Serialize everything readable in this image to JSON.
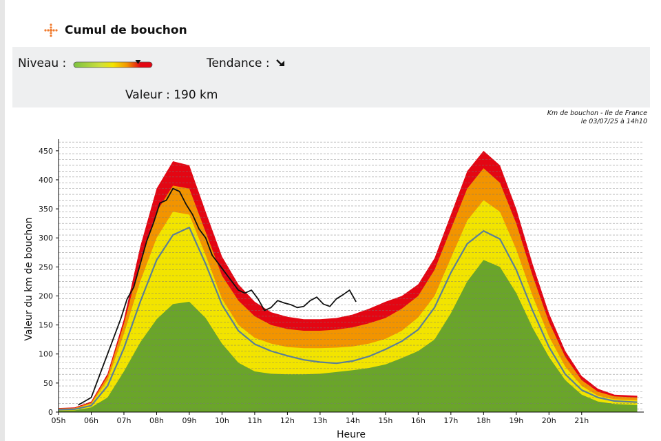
{
  "header": {
    "title": "Cumul de bouchon",
    "icon": "traffic-icon"
  },
  "status": {
    "niveau_label": "Niveau :",
    "tendance_label": "Tendance :",
    "tendance_icon": "arrow-down-right-icon",
    "valeur_label": "Valeur : 190 km",
    "level_colors": [
      "#7dc242",
      "#f2e400",
      "#f29400",
      "#e30613"
    ],
    "level_fraction": 0.82
  },
  "chart_data": {
    "type": "area",
    "title": "Km de bouchon - Ile de France",
    "subtitle": "le 03/07/25 à 14h10",
    "xlabel": "Heure",
    "ylabel": "Valeur du km de bouchon",
    "xlim": [
      5,
      22.9
    ],
    "ylim": [
      0,
      470
    ],
    "x_ticks": [
      5,
      6,
      7,
      8,
      9,
      10,
      11,
      12,
      13,
      14,
      15,
      16,
      17,
      18,
      19,
      20,
      21
    ],
    "x_tick_labels": [
      "05h",
      "06h",
      "07h",
      "08h",
      "09h",
      "10h",
      "11h",
      "12h",
      "13h",
      "14h",
      "15h",
      "16h",
      "17h",
      "18h",
      "19h",
      "20h",
      "21h"
    ],
    "y_ticks": [
      0,
      50,
      100,
      150,
      200,
      250,
      300,
      350,
      400,
      450
    ],
    "grid": "horizontal-dashed",
    "x": [
      5,
      5.5,
      6,
      6.5,
      7,
      7.5,
      8,
      8.5,
      9,
      9.5,
      10,
      10.5,
      11,
      11.5,
      12,
      12.5,
      13,
      13.5,
      14,
      14.5,
      15,
      15.5,
      16,
      16.5,
      17,
      17.5,
      18,
      18.5,
      19,
      19.5,
      20,
      20.5,
      21,
      21.5,
      22,
      22.7
    ],
    "bands": [
      {
        "name": "green",
        "color": "#6aa52a",
        "values": [
          2,
          3,
          8,
          25,
          70,
          120,
          160,
          186,
          190,
          162,
          118,
          85,
          70,
          66,
          65,
          65,
          66,
          69,
          72,
          76,
          82,
          93,
          105,
          125,
          170,
          225,
          262,
          250,
          205,
          145,
          95,
          55,
          30,
          18,
          14,
          12
        ]
      },
      {
        "name": "yellow",
        "color": "#f2e400",
        "values": [
          5,
          6,
          14,
          55,
          135,
          225,
          300,
          345,
          340,
          270,
          195,
          150,
          128,
          118,
          112,
          110,
          110,
          111,
          113,
          118,
          126,
          140,
          163,
          200,
          265,
          330,
          365,
          345,
          280,
          200,
          130,
          78,
          45,
          28,
          22,
          20
        ]
      },
      {
        "name": "orange",
        "color": "#f29400",
        "values": [
          6,
          7,
          16,
          62,
          152,
          260,
          345,
          390,
          385,
          310,
          235,
          192,
          165,
          150,
          143,
          140,
          140,
          142,
          146,
          153,
          162,
          178,
          200,
          245,
          315,
          385,
          420,
          395,
          325,
          235,
          155,
          95,
          55,
          35,
          27,
          25
        ]
      },
      {
        "name": "red",
        "color": "#e30613",
        "values": [
          7,
          8,
          18,
          66,
          160,
          285,
          385,
          432,
          425,
          345,
          268,
          220,
          190,
          172,
          164,
          160,
          160,
          162,
          168,
          178,
          190,
          200,
          220,
          265,
          340,
          415,
          450,
          425,
          350,
          255,
          170,
          105,
          62,
          40,
          30,
          28
        ]
      }
    ],
    "series": [
      {
        "color": "#5b7f96",
        "x": [
          5,
          5.5,
          6,
          6.5,
          7,
          7.5,
          8,
          8.5,
          9,
          9.5,
          10,
          10.5,
          11,
          11.5,
          12,
          12.5,
          13,
          13.5,
          14,
          14.5,
          15,
          15.5,
          16,
          16.5,
          17,
          17.5,
          18,
          18.5,
          19,
          19.5,
          20,
          20.5,
          21,
          21.5,
          22,
          22.7
        ],
        "values": [
          4,
          5,
          11,
          45,
          110,
          190,
          262,
          305,
          318,
          255,
          185,
          140,
          117,
          105,
          97,
          90,
          86,
          84,
          88,
          96,
          108,
          122,
          142,
          180,
          240,
          290,
          312,
          298,
          245,
          175,
          112,
          65,
          38,
          25,
          19,
          17
        ]
      },
      {
        "color": "#111111",
        "x": [
          5.6,
          6,
          6.3,
          6.6,
          6.9,
          7.1,
          7.3,
          7.5,
          7.7,
          7.9,
          8.1,
          8.3,
          8.5,
          8.7,
          8.9,
          9.1,
          9.3,
          9.5,
          9.7,
          9.9,
          10.1,
          10.3,
          10.5,
          10.7,
          10.9,
          11.1,
          11.3,
          11.5,
          11.7,
          11.9,
          12.1,
          12.3,
          12.5,
          12.7,
          12.9,
          13.1,
          13.3,
          13.5,
          13.7,
          13.9,
          14.1
        ],
        "values": [
          12,
          25,
          70,
          115,
          160,
          195,
          215,
          255,
          295,
          325,
          360,
          365,
          385,
          380,
          358,
          340,
          315,
          300,
          270,
          255,
          240,
          225,
          210,
          205,
          210,
          195,
          175,
          180,
          192,
          188,
          185,
          180,
          182,
          192,
          198,
          186,
          182,
          195,
          202,
          210,
          190
        ]
      }
    ]
  }
}
